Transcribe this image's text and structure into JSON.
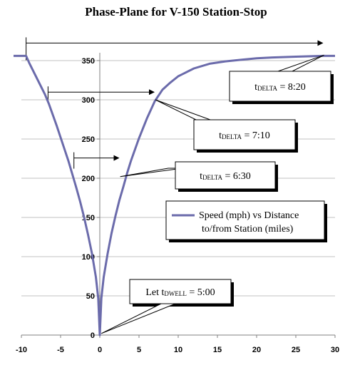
{
  "chart_data": {
    "type": "line",
    "title": "Phase-Plane for V-150 Station-Stop",
    "xlabel": "",
    "ylabel": "",
    "xlim": [
      -10,
      30
    ],
    "ylim": [
      0,
      360
    ],
    "x_ticks": [
      -10,
      -5,
      0,
      5,
      10,
      15,
      20,
      25,
      30
    ],
    "y_ticks": [
      0,
      50,
      100,
      150,
      200,
      250,
      300,
      350
    ],
    "grid": "horizontal",
    "legend": "center-right",
    "series": [
      {
        "name": "Speed (mph) vs Distance to/from Station (miles)",
        "color": "#6b6bab",
        "points": [
          [
            -11,
            356
          ],
          [
            -9.4,
            356
          ],
          [
            -9.0,
            347
          ],
          [
            -8.5,
            337
          ],
          [
            -8.0,
            327
          ],
          [
            -7.5,
            317
          ],
          [
            -7.0,
            307
          ],
          [
            -6.5,
            295
          ],
          [
            -6.0,
            281
          ],
          [
            -5.5,
            267
          ],
          [
            -5.0,
            252
          ],
          [
            -4.5,
            237
          ],
          [
            -4.0,
            222
          ],
          [
            -3.5,
            205
          ],
          [
            -3.0,
            188
          ],
          [
            -2.5,
            170
          ],
          [
            -2.0,
            150
          ],
          [
            -1.5,
            128
          ],
          [
            -1.0,
            104
          ],
          [
            -0.5,
            74
          ],
          [
            -0.2,
            47
          ],
          [
            0,
            0
          ],
          [
            0.2,
            47
          ],
          [
            0.5,
            74
          ],
          [
            1.0,
            104
          ],
          [
            1.5,
            130
          ],
          [
            2.0,
            152
          ],
          [
            2.5,
            172
          ],
          [
            3.0,
            189
          ],
          [
            3.5,
            207
          ],
          [
            4.0,
            223
          ],
          [
            5.0,
            251
          ],
          [
            6.0,
            276
          ],
          [
            7.0,
            298
          ],
          [
            8.0,
            313
          ],
          [
            9.0,
            322
          ],
          [
            10.0,
            330
          ],
          [
            12.0,
            340
          ],
          [
            14.0,
            346
          ],
          [
            16.0,
            349
          ],
          [
            18.0,
            351
          ],
          [
            20.0,
            353
          ],
          [
            22.0,
            354
          ],
          [
            25.0,
            355
          ],
          [
            28.5,
            356
          ],
          [
            30,
            356
          ]
        ]
      }
    ],
    "annotations": [
      {
        "base": "t",
        "sub": "DWELL",
        "text": " = 5:00",
        "prefix": "Let "
      },
      {
        "base": "t",
        "sub": "DELTA",
        "text": " = 6:30",
        "prefix": ""
      },
      {
        "base": "t",
        "sub": "DELTA",
        "text": " = 7:10",
        "prefix": ""
      },
      {
        "base": "t",
        "sub": "DELTA",
        "text": " = 8:20",
        "prefix": ""
      }
    ],
    "legend_lines": [
      "Speed (mph) vs Distance",
      "to/from Station (miles)"
    ]
  },
  "colors": {
    "series": "#6b6bab",
    "grid": "#c0c0c0",
    "axis": "#808080"
  }
}
